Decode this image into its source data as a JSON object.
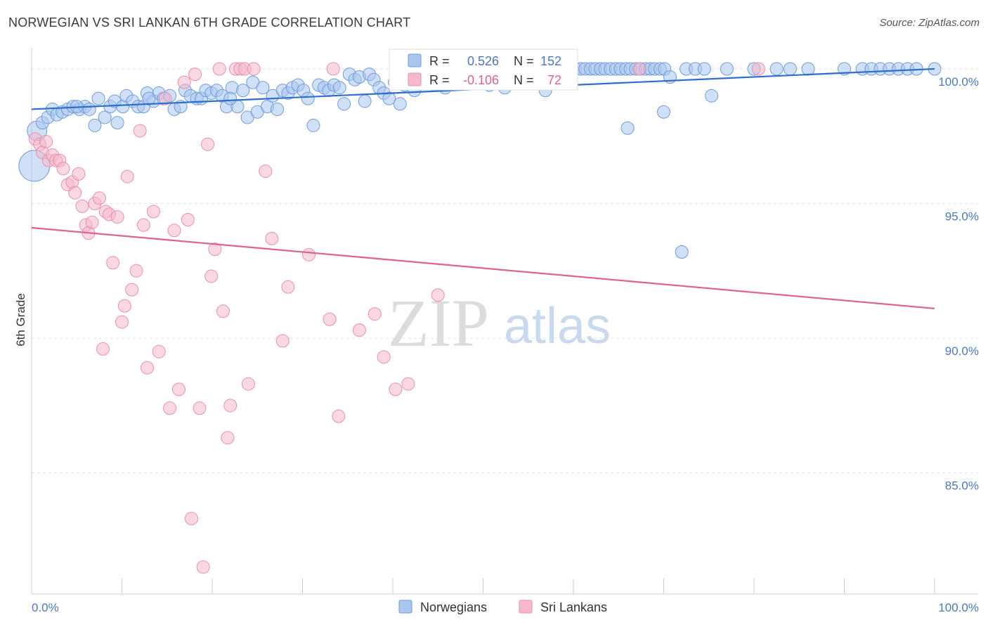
{
  "title": "NORWEGIAN VS SRI LANKAN 6TH GRADE CORRELATION CHART",
  "source": "Source: ZipAtlas.com",
  "watermark": {
    "zip": "ZIP",
    "atlas": "atlas"
  },
  "colors": {
    "blue_fill": "#a9c6ee",
    "blue_stroke": "#6f9be0",
    "blue_line": "#2b6fcf",
    "pink_fill": "#f6b8cb",
    "pink_stroke": "#ea8fae",
    "pink_line": "#e0608f",
    "grid": "#e3e3e3",
    "axis": "#cccccc"
  },
  "legend_box": {
    "rows": [
      {
        "r_label": "R =",
        "r_value": "0.526",
        "n_label": "N =",
        "n_value": "152",
        "color": "blue"
      },
      {
        "r_label": "R =",
        "r_value": "-0.106",
        "n_label": "N =",
        "n_value": "72",
        "color": "pink"
      }
    ]
  },
  "bottom_legend": [
    {
      "label": "Norwegians",
      "color": "blue"
    },
    {
      "label": "Sri Lankans",
      "color": "pink"
    }
  ],
  "chart_data": {
    "type": "scatter",
    "title": "NORWEGIAN VS SRI LANKAN 6TH GRADE CORRELATION CHART",
    "xlabel": "",
    "ylabel": "6th Grade",
    "xlim": [
      0,
      100
    ],
    "ylim": [
      80.5,
      100.6
    ],
    "x_tick_labels": [
      "0.0%",
      "100.0%"
    ],
    "y_ticks": [
      {
        "value": 100,
        "label": "100.0%"
      },
      {
        "value": 95,
        "label": "95.0%"
      },
      {
        "value": 90,
        "label": "90.0%"
      },
      {
        "value": 85,
        "label": "85.0%"
      }
    ],
    "series": [
      {
        "name": "Norwegians",
        "color": "blue",
        "trend": {
          "x": [
            0,
            100
          ],
          "y": [
            98.5,
            100.0
          ]
        },
        "points": [
          [
            0.3,
            96.4,
            22
          ],
          [
            0.6,
            97.7,
            14
          ],
          [
            1.2,
            98.0,
            9
          ],
          [
            1.8,
            98.2,
            9
          ],
          [
            2.3,
            98.5,
            9
          ],
          [
            2.8,
            98.3,
            9
          ],
          [
            3.4,
            98.4,
            9
          ],
          [
            4.0,
            98.5,
            9
          ],
          [
            4.6,
            98.6,
            9
          ],
          [
            5.3,
            98.5,
            9
          ],
          [
            5.9,
            98.6,
            9
          ],
          [
            6.4,
            98.5,
            9
          ],
          [
            7.0,
            97.9,
            9
          ],
          [
            7.4,
            98.9,
            9
          ],
          [
            8.1,
            98.2,
            9
          ],
          [
            8.7,
            98.6,
            9
          ],
          [
            9.2,
            98.8,
            9
          ],
          [
            9.5,
            98.0,
            9
          ],
          [
            10.1,
            98.6,
            9
          ],
          [
            10.5,
            99.0,
            9
          ],
          [
            11.2,
            98.8,
            9
          ],
          [
            11.8,
            98.6,
            9
          ],
          [
            12.4,
            98.6,
            9
          ],
          [
            12.8,
            99.1,
            9
          ],
          [
            13.5,
            98.8,
            9
          ],
          [
            14.1,
            99.1,
            9
          ],
          [
            14.6,
            98.9,
            9
          ],
          [
            15.3,
            99.0,
            9
          ],
          [
            15.8,
            98.5,
            9
          ],
          [
            16.5,
            98.6,
            9
          ],
          [
            17.0,
            99.2,
            9
          ],
          [
            17.6,
            99.0,
            9
          ],
          [
            18.3,
            98.9,
            9
          ],
          [
            18.8,
            98.9,
            9
          ],
          [
            19.3,
            99.2,
            9
          ],
          [
            19.9,
            99.1,
            9
          ],
          [
            20.5,
            99.2,
            9
          ],
          [
            21.1,
            99.0,
            9
          ],
          [
            21.6,
            98.6,
            9
          ],
          [
            22.2,
            99.3,
            9
          ],
          [
            22.8,
            98.6,
            9
          ],
          [
            23.4,
            99.2,
            9
          ],
          [
            23.9,
            98.2,
            9
          ],
          [
            24.5,
            99.5,
            9
          ],
          [
            25.0,
            98.4,
            9
          ],
          [
            25.6,
            99.3,
            9
          ],
          [
            26.1,
            98.6,
            9
          ],
          [
            26.7,
            99.0,
            9
          ],
          [
            27.2,
            98.5,
            9
          ],
          [
            27.8,
            99.2,
            9
          ],
          [
            28.4,
            99.1,
            9
          ],
          [
            28.9,
            99.3,
            9
          ],
          [
            29.5,
            99.4,
            9
          ],
          [
            30.1,
            99.2,
            9
          ],
          [
            30.6,
            98.9,
            9
          ],
          [
            31.2,
            97.9,
            9
          ],
          [
            31.8,
            99.4,
            9
          ],
          [
            32.4,
            99.3,
            9
          ],
          [
            32.9,
            99.2,
            9
          ],
          [
            33.5,
            99.4,
            9
          ],
          [
            34.1,
            99.3,
            9
          ],
          [
            34.6,
            98.7,
            9
          ],
          [
            35.2,
            99.8,
            9
          ],
          [
            35.8,
            99.6,
            9
          ],
          [
            36.3,
            99.7,
            9
          ],
          [
            36.9,
            98.8,
            9
          ],
          [
            37.4,
            99.8,
            9
          ],
          [
            37.9,
            99.6,
            9
          ],
          [
            38.5,
            99.3,
            9
          ],
          [
            39.0,
            99.1,
            9
          ],
          [
            39.6,
            98.9,
            9
          ],
          [
            40.2,
            99.5,
            9
          ],
          [
            40.8,
            98.7,
            9
          ],
          [
            41.3,
            99.4,
            9
          ],
          [
            41.9,
            99.8,
            9
          ],
          [
            42.4,
            99.2,
            9
          ],
          [
            43.0,
            99.5,
            9
          ],
          [
            43.6,
            99.8,
            9
          ],
          [
            44.1,
            99.6,
            9
          ],
          [
            44.7,
            99.4,
            9
          ],
          [
            45.2,
            99.8,
            9
          ],
          [
            45.8,
            99.3,
            9
          ],
          [
            46.3,
            99.6,
            9
          ],
          [
            46.9,
            99.8,
            9
          ],
          [
            47.4,
            99.5,
            9
          ],
          [
            47.9,
            100.0,
            9
          ],
          [
            48.5,
            99.6,
            9
          ],
          [
            49.0,
            99.8,
            9
          ],
          [
            49.6,
            99.8,
            9
          ],
          [
            50.1,
            100.0,
            9
          ],
          [
            50.7,
            99.4,
            9
          ],
          [
            51.3,
            100.0,
            9
          ],
          [
            51.8,
            100.0,
            9
          ],
          [
            52.4,
            99.3,
            9
          ],
          [
            53.0,
            100.0,
            9
          ],
          [
            53.5,
            100.0,
            9
          ],
          [
            54.1,
            99.8,
            9
          ],
          [
            54.7,
            100.0,
            9
          ],
          [
            55.2,
            100.0,
            9
          ],
          [
            55.8,
            99.8,
            9
          ],
          [
            56.3,
            100.0,
            9
          ],
          [
            56.9,
            99.2,
            9
          ],
          [
            57.4,
            100.0,
            9
          ],
          [
            58.0,
            99.9,
            9
          ],
          [
            58.5,
            100.0,
            9
          ],
          [
            59.1,
            100.0,
            9
          ],
          [
            59.6,
            100.0,
            9
          ],
          [
            60.2,
            100.0,
            9
          ],
          [
            60.8,
            100.0,
            9
          ],
          [
            61.3,
            100.0,
            9
          ],
          [
            61.9,
            100.0,
            9
          ],
          [
            62.4,
            100.0,
            9
          ],
          [
            63.0,
            100.0,
            9
          ],
          [
            63.5,
            100.0,
            9
          ],
          [
            64.1,
            100.0,
            9
          ],
          [
            64.7,
            100.0,
            9
          ],
          [
            65.2,
            100.0,
            9
          ],
          [
            65.8,
            100.0,
            9
          ],
          [
            66.3,
            100.0,
            9
          ],
          [
            66.9,
            100.0,
            9
          ],
          [
            67.4,
            100.0,
            9
          ],
          [
            68.0,
            100.0,
            9
          ],
          [
            68.5,
            100.0,
            9
          ],
          [
            69.0,
            100.0,
            9
          ],
          [
            69.6,
            100.0,
            9
          ],
          [
            70.1,
            100.0,
            9
          ],
          [
            70.7,
            99.7,
            9
          ],
          [
            72.5,
            100.0,
            9
          ],
          [
            73.5,
            100.0,
            9
          ],
          [
            74.5,
            100.0,
            9
          ],
          [
            75.3,
            99.0,
            9
          ],
          [
            77.0,
            100.0,
            9
          ],
          [
            80.0,
            100.0,
            9
          ],
          [
            82.5,
            100.0,
            9
          ],
          [
            84.0,
            100.0,
            9
          ],
          [
            86.0,
            100.0,
            9
          ],
          [
            90.0,
            100.0,
            9
          ],
          [
            92.0,
            100.0,
            9
          ],
          [
            93.0,
            100.0,
            9
          ],
          [
            94.0,
            100.0,
            9
          ],
          [
            95.0,
            100.0,
            9
          ],
          [
            96.0,
            100.0,
            9
          ],
          [
            97.0,
            100.0,
            9
          ],
          [
            98.0,
            100.0,
            9
          ],
          [
            100.0,
            100.0,
            9
          ],
          [
            22.0,
            98.9,
            9
          ],
          [
            13.0,
            98.9,
            9
          ],
          [
            66.0,
            97.8,
            9
          ],
          [
            72.0,
            93.2,
            9
          ],
          [
            41.0,
            99.6,
            9
          ],
          [
            70.0,
            98.4,
            9
          ],
          [
            5.0,
            98.6,
            9
          ]
        ]
      },
      {
        "name": "Sri Lankans",
        "color": "pink",
        "trend": {
          "x": [
            0,
            100
          ],
          "y": [
            94.1,
            91.1
          ]
        },
        "points": [
          [
            0.4,
            97.4,
            9
          ],
          [
            0.9,
            97.2,
            9
          ],
          [
            1.2,
            96.9,
            9
          ],
          [
            1.6,
            97.3,
            9
          ],
          [
            1.9,
            96.6,
            9
          ],
          [
            2.3,
            96.8,
            9
          ],
          [
            2.7,
            96.6,
            9
          ],
          [
            3.1,
            96.6,
            9
          ],
          [
            3.5,
            96.3,
            9
          ],
          [
            4.0,
            95.7,
            9
          ],
          [
            4.5,
            95.8,
            9
          ],
          [
            4.8,
            95.4,
            9
          ],
          [
            5.2,
            96.1,
            9
          ],
          [
            5.6,
            94.9,
            9
          ],
          [
            6.0,
            94.2,
            9
          ],
          [
            6.3,
            93.9,
            9
          ],
          [
            6.7,
            94.3,
            9
          ],
          [
            7.0,
            95.0,
            9
          ],
          [
            7.5,
            95.2,
            9
          ],
          [
            7.9,
            89.6,
            9
          ],
          [
            8.2,
            94.7,
            9
          ],
          [
            8.6,
            94.6,
            9
          ],
          [
            9.0,
            92.8,
            9
          ],
          [
            9.5,
            94.5,
            9
          ],
          [
            10.0,
            90.6,
            9
          ],
          [
            10.3,
            91.2,
            9
          ],
          [
            10.6,
            96.0,
            9
          ],
          [
            11.1,
            91.8,
            9
          ],
          [
            11.6,
            92.5,
            9
          ],
          [
            12.0,
            97.7,
            9
          ],
          [
            12.4,
            94.2,
            9
          ],
          [
            12.8,
            88.9,
            9
          ],
          [
            13.5,
            94.7,
            9
          ],
          [
            14.1,
            89.5,
            9
          ],
          [
            14.8,
            98.9,
            9
          ],
          [
            15.3,
            87.4,
            9
          ],
          [
            15.8,
            94.0,
            9
          ],
          [
            16.3,
            88.1,
            9
          ],
          [
            16.9,
            99.5,
            9
          ],
          [
            17.3,
            94.4,
            9
          ],
          [
            17.7,
            83.3,
            9
          ],
          [
            18.1,
            99.8,
            9
          ],
          [
            18.6,
            87.4,
            9
          ],
          [
            19.0,
            81.5,
            9
          ],
          [
            19.5,
            97.2,
            9
          ],
          [
            19.9,
            92.3,
            9
          ],
          [
            20.3,
            93.3,
            9
          ],
          [
            20.8,
            100.0,
            9
          ],
          [
            21.2,
            91.0,
            9
          ],
          [
            21.7,
            86.3,
            9
          ],
          [
            22.0,
            87.5,
            9
          ],
          [
            22.6,
            100.0,
            9
          ],
          [
            23.1,
            100.0,
            9
          ],
          [
            23.6,
            100.0,
            9
          ],
          [
            24.0,
            88.3,
            9
          ],
          [
            24.6,
            100.0,
            9
          ],
          [
            25.9,
            96.2,
            9
          ],
          [
            26.6,
            93.7,
            9
          ],
          [
            27.8,
            89.9,
            9
          ],
          [
            28.4,
            91.9,
            9
          ],
          [
            30.7,
            93.1,
            9
          ],
          [
            33.0,
            90.7,
            9
          ],
          [
            33.4,
            100.0,
            9
          ],
          [
            34.0,
            87.1,
            9
          ],
          [
            36.3,
            90.3,
            9
          ],
          [
            38.0,
            90.9,
            9
          ],
          [
            39.0,
            89.3,
            9
          ],
          [
            40.3,
            88.1,
            9
          ],
          [
            41.7,
            88.3,
            9
          ],
          [
            45.0,
            91.6,
            9
          ],
          [
            67.3,
            100.0,
            9
          ],
          [
            80.5,
            100.0,
            9
          ]
        ]
      }
    ]
  }
}
